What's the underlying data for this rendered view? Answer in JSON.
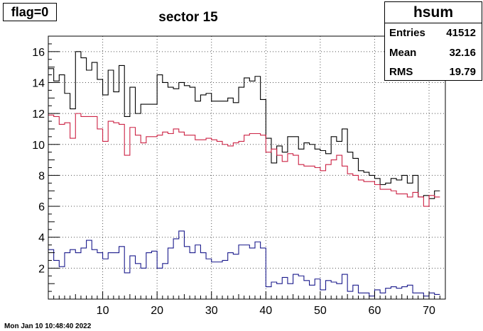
{
  "flag_label": "flag=0",
  "chart_data": {
    "type": "histogram",
    "title": "sector 15",
    "xlabel": "",
    "ylabel": "",
    "xlim": [
      0,
      73
    ],
    "ylim": [
      0,
      17
    ],
    "x_ticks": [
      10,
      20,
      30,
      40,
      50,
      60,
      70
    ],
    "y_ticks": [
      2,
      4,
      6,
      8,
      10,
      12,
      14,
      16
    ],
    "grid": true,
    "bin_width": 1,
    "series": [
      {
        "color": "#000000",
        "values": [
          14.9,
          14.1,
          14.5,
          13.3,
          12.3,
          16.0,
          15.6,
          14.8,
          15.3,
          14.2,
          13.2,
          14.8,
          13.4,
          15.1,
          11.8,
          13.7,
          12.0,
          12.6,
          12.6,
          12.6,
          14.5,
          14.0,
          13.7,
          13.6,
          14.0,
          13.8,
          13.7,
          12.8,
          13.2,
          13.3,
          12.8,
          12.8,
          12.8,
          13.0,
          12.7,
          13.7,
          14.3,
          14.1,
          14.4,
          12.9,
          10.4,
          8.8,
          9.9,
          9.5,
          10.5,
          10.5,
          9.7,
          10.1,
          10.0,
          9.7,
          9.6,
          9.4,
          10.5,
          10.2,
          11.0,
          9.5,
          9.1,
          8.3,
          8.2,
          8.0,
          7.8,
          7.4,
          7.5,
          7.8,
          7.7,
          8.0,
          7.5,
          8.0,
          6.6,
          6.7,
          6.5,
          7.0
        ]
      },
      {
        "color": "#cc2244",
        "values": [
          11.9,
          11.8,
          11.3,
          11.4,
          10.4,
          12.0,
          11.8,
          11.8,
          11.8,
          11.0,
          10.2,
          11.5,
          11.4,
          11.3,
          9.3,
          11.1,
          10.6,
          10.1,
          10.5,
          10.5,
          10.6,
          10.8,
          10.7,
          11.0,
          10.8,
          10.6,
          10.6,
          10.3,
          10.3,
          10.4,
          10.3,
          10.2,
          10.0,
          9.9,
          10.1,
          10.2,
          10.6,
          10.7,
          10.7,
          10.6,
          9.5,
          9.7,
          9.3,
          8.9,
          9.4,
          9.3,
          8.7,
          8.6,
          8.6,
          8.5,
          8.3,
          8.7,
          9.0,
          9.3,
          8.6,
          8.1,
          8.0,
          7.7,
          7.6,
          7.6,
          7.4,
          7.1,
          7.1,
          7.0,
          6.8,
          6.8,
          6.6,
          6.9,
          6.6,
          6.0,
          6.7,
          6.6
        ]
      },
      {
        "color": "#1a1a8c",
        "values": [
          3.2,
          2.5,
          2.1,
          3.0,
          3.2,
          3.0,
          3.3,
          3.8,
          3.2,
          3.0,
          2.6,
          3.0,
          3.0,
          3.4,
          1.7,
          2.8,
          2.3,
          2.0,
          3.0,
          3.1,
          2.0,
          2.3,
          3.3,
          3.9,
          4.4,
          3.4,
          3.0,
          3.5,
          3.0,
          2.6,
          2.4,
          2.4,
          2.5,
          3.0,
          2.9,
          3.5,
          3.5,
          3.3,
          3.7,
          3.3,
          0.8,
          1.1,
          1.0,
          1.4,
          1.0,
          1.6,
          1.5,
          1.2,
          0.9,
          1.3,
          0.6,
          1.2,
          1.1,
          1.0,
          1.6,
          0.5,
          0.9,
          0.4,
          0.4,
          0.2,
          0.6,
          0.4,
          0.7,
          0.8,
          0.7,
          0.8,
          0.9,
          0.4,
          0.4,
          0.2,
          0.4,
          0.3
        ]
      }
    ]
  },
  "stats": {
    "name": "hsum",
    "entries_label": "Entries",
    "entries_value": "41512",
    "mean_label": "Mean",
    "mean_value": "32.16",
    "rms_label": "RMS",
    "rms_value": "19.79"
  },
  "footer_timestamp": "Mon Jan 10 10:48:40 2022"
}
